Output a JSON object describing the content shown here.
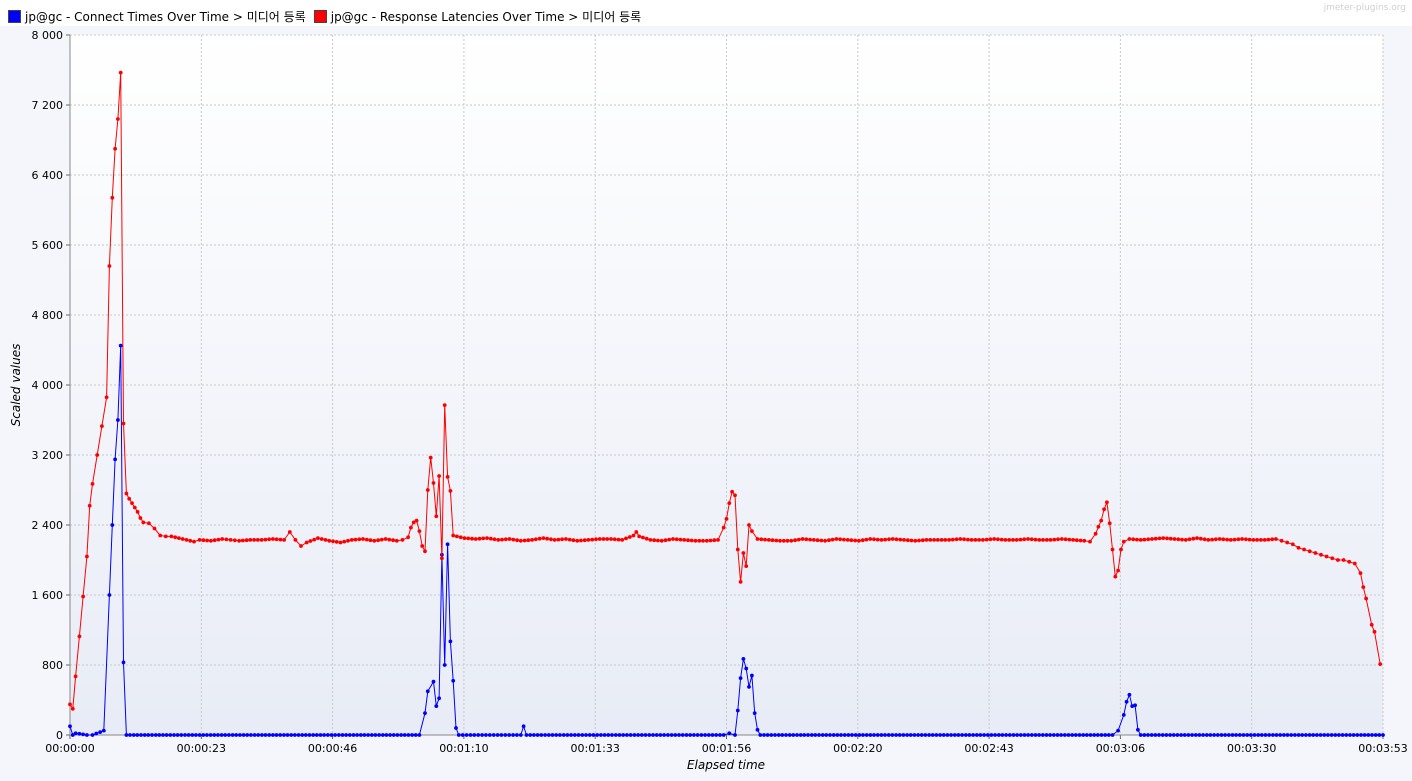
{
  "watermark": "jmeter-plugins.org",
  "chart_data": {
    "type": "line",
    "xlabel": "Elapsed time",
    "ylabel": "Scaled values",
    "ylim": [
      0,
      8000
    ],
    "xlim_seconds": [
      0,
      233
    ],
    "y_ticks": [
      "0",
      "800",
      "1 600",
      "2 400",
      "3 200",
      "4 000",
      "4 800",
      "5 600",
      "6 400",
      "7 200",
      "8 000"
    ],
    "x_ticks": [
      "00:00:00",
      "00:00:23",
      "00:00:46",
      "00:01:10",
      "00:01:33",
      "00:01:56",
      "00:02:20",
      "00:02:43",
      "00:03:06",
      "00:03:30",
      "00:03:53"
    ],
    "grid": true,
    "legend_position": "top-left",
    "series": [
      {
        "name": "jp@gc - Connect Times Over Time > 미디어 등록",
        "color": "#0000ff",
        "points": [
          [
            0,
            100
          ],
          [
            0.5,
            0
          ],
          [
            1,
            20
          ],
          [
            3,
            0
          ],
          [
            4,
            0
          ],
          [
            6,
            50
          ],
          [
            7,
            1600
          ],
          [
            7.5,
            2400
          ],
          [
            8,
            3150
          ],
          [
            8.5,
            3600
          ],
          [
            9,
            4450
          ],
          [
            9.5,
            830
          ],
          [
            10,
            0
          ],
          [
            62,
            0
          ],
          [
            63,
            250
          ],
          [
            63.5,
            500
          ],
          [
            64.5,
            610
          ],
          [
            65,
            330
          ],
          [
            65.5,
            420
          ],
          [
            66,
            2060
          ],
          [
            66.5,
            800
          ],
          [
            67,
            2180
          ],
          [
            67.5,
            1070
          ],
          [
            68,
            620
          ],
          [
            68.5,
            80
          ],
          [
            69,
            0
          ],
          [
            80,
            0
          ],
          [
            80.5,
            100
          ],
          [
            81,
            0
          ],
          [
            116,
            0
          ],
          [
            117,
            20
          ],
          [
            118,
            0
          ],
          [
            118.5,
            280
          ],
          [
            119,
            650
          ],
          [
            119.5,
            870
          ],
          [
            120,
            760
          ],
          [
            120.5,
            550
          ],
          [
            121,
            680
          ],
          [
            121.5,
            250
          ],
          [
            122,
            60
          ],
          [
            122.5,
            0
          ],
          [
            185,
            0
          ],
          [
            186,
            50
          ],
          [
            187,
            230
          ],
          [
            187.5,
            380
          ],
          [
            188,
            460
          ],
          [
            188.5,
            330
          ],
          [
            189,
            340
          ],
          [
            189.5,
            60
          ],
          [
            190,
            0
          ],
          [
            233,
            0
          ]
        ]
      },
      {
        "name": "jp@gc - Response Latencies Over Time > 미디어 등록",
        "color": "#ff0000",
        "points": [
          [
            0,
            350
          ],
          [
            0.5,
            300
          ],
          [
            1,
            670
          ],
          [
            3,
            2040
          ],
          [
            3.5,
            2620
          ],
          [
            4,
            2870
          ],
          [
            6.5,
            3860
          ],
          [
            7,
            5360
          ],
          [
            7.5,
            6140
          ],
          [
            8,
            6700
          ],
          [
            8.5,
            7040
          ],
          [
            9,
            7570
          ],
          [
            9.5,
            3560
          ],
          [
            10,
            2760
          ],
          [
            10.5,
            2700
          ],
          [
            11,
            2650
          ],
          [
            11.5,
            2600
          ],
          [
            12,
            2550
          ],
          [
            12.5,
            2480
          ],
          [
            13,
            2430
          ],
          [
            14,
            2420
          ],
          [
            15,
            2360
          ],
          [
            16,
            2280
          ],
          [
            17,
            2270
          ],
          [
            18,
            2270
          ],
          [
            20,
            2240
          ],
          [
            22,
            2210
          ],
          [
            23,
            2230
          ],
          [
            25,
            2220
          ],
          [
            27,
            2240
          ],
          [
            30,
            2220
          ],
          [
            32,
            2230
          ],
          [
            34,
            2230
          ],
          [
            36,
            2240
          ],
          [
            38,
            2230
          ],
          [
            39,
            2320
          ],
          [
            40,
            2230
          ],
          [
            41,
            2160
          ],
          [
            42,
            2200
          ],
          [
            44,
            2250
          ],
          [
            46,
            2220
          ],
          [
            48,
            2200
          ],
          [
            50,
            2230
          ],
          [
            52,
            2240
          ],
          [
            54,
            2220
          ],
          [
            56,
            2240
          ],
          [
            58,
            2220
          ],
          [
            59,
            2230
          ],
          [
            60,
            2260
          ],
          [
            60.5,
            2370
          ],
          [
            61,
            2430
          ],
          [
            61.5,
            2450
          ],
          [
            62,
            2330
          ],
          [
            62.5,
            2160
          ],
          [
            63,
            2100
          ],
          [
            63.5,
            2800
          ],
          [
            64,
            3170
          ],
          [
            64.5,
            2880
          ],
          [
            65,
            2500
          ],
          [
            65.5,
            2960
          ],
          [
            66,
            2020
          ],
          [
            66.5,
            3770
          ],
          [
            67,
            2950
          ],
          [
            67.5,
            2790
          ],
          [
            68,
            2280
          ],
          [
            70,
            2250
          ],
          [
            72,
            2240
          ],
          [
            74,
            2250
          ],
          [
            76,
            2230
          ],
          [
            78,
            2240
          ],
          [
            80,
            2220
          ],
          [
            82,
            2230
          ],
          [
            84,
            2250
          ],
          [
            86,
            2230
          ],
          [
            88,
            2240
          ],
          [
            90,
            2220
          ],
          [
            92,
            2230
          ],
          [
            94,
            2240
          ],
          [
            96,
            2240
          ],
          [
            98,
            2230
          ],
          [
            100,
            2280
          ],
          [
            100.5,
            2320
          ],
          [
            101,
            2270
          ],
          [
            103,
            2230
          ],
          [
            105,
            2220
          ],
          [
            107,
            2240
          ],
          [
            109,
            2230
          ],
          [
            111,
            2220
          ],
          [
            113,
            2220
          ],
          [
            115,
            2230
          ],
          [
            116,
            2370
          ],
          [
            116.5,
            2470
          ],
          [
            117,
            2650
          ],
          [
            117.5,
            2780
          ],
          [
            118,
            2740
          ],
          [
            118.5,
            2120
          ],
          [
            119,
            1750
          ],
          [
            119.5,
            2080
          ],
          [
            120,
            1930
          ],
          [
            120.5,
            2400
          ],
          [
            121,
            2330
          ],
          [
            122,
            2240
          ],
          [
            124,
            2230
          ],
          [
            126,
            2220
          ],
          [
            128,
            2220
          ],
          [
            130,
            2240
          ],
          [
            132,
            2230
          ],
          [
            134,
            2220
          ],
          [
            136,
            2240
          ],
          [
            138,
            2230
          ],
          [
            140,
            2220
          ],
          [
            142,
            2240
          ],
          [
            144,
            2230
          ],
          [
            146,
            2240
          ],
          [
            148,
            2230
          ],
          [
            150,
            2220
          ],
          [
            152,
            2230
          ],
          [
            154,
            2230
          ],
          [
            156,
            2230
          ],
          [
            158,
            2240
          ],
          [
            160,
            2230
          ],
          [
            162,
            2230
          ],
          [
            164,
            2240
          ],
          [
            166,
            2230
          ],
          [
            168,
            2230
          ],
          [
            170,
            2240
          ],
          [
            172,
            2230
          ],
          [
            174,
            2230
          ],
          [
            176,
            2240
          ],
          [
            178,
            2230
          ],
          [
            180,
            2220
          ],
          [
            181,
            2210
          ],
          [
            182,
            2300
          ],
          [
            182.5,
            2380
          ],
          [
            183,
            2450
          ],
          [
            183.5,
            2580
          ],
          [
            184,
            2660
          ],
          [
            184.5,
            2420
          ],
          [
            185,
            2120
          ],
          [
            185.5,
            1810
          ],
          [
            186,
            1880
          ],
          [
            186.5,
            2120
          ],
          [
            187,
            2210
          ],
          [
            188,
            2240
          ],
          [
            190,
            2230
          ],
          [
            192,
            2240
          ],
          [
            194,
            2250
          ],
          [
            196,
            2240
          ],
          [
            198,
            2230
          ],
          [
            200,
            2250
          ],
          [
            202,
            2230
          ],
          [
            204,
            2240
          ],
          [
            206,
            2230
          ],
          [
            208,
            2240
          ],
          [
            210,
            2230
          ],
          [
            212,
            2230
          ],
          [
            214,
            2240
          ],
          [
            215,
            2220
          ],
          [
            216,
            2200
          ],
          [
            217,
            2180
          ],
          [
            218,
            2140
          ],
          [
            219,
            2120
          ],
          [
            220,
            2100
          ],
          [
            221,
            2080
          ],
          [
            222,
            2060
          ],
          [
            223,
            2040
          ],
          [
            224,
            2020
          ],
          [
            225,
            2000
          ],
          [
            226,
            2000
          ],
          [
            227,
            1980
          ],
          [
            228,
            1960
          ],
          [
            229,
            1850
          ],
          [
            229.5,
            1690
          ],
          [
            230,
            1560
          ],
          [
            231,
            1260
          ],
          [
            231.5,
            1180
          ],
          [
            232.5,
            810
          ]
        ]
      }
    ]
  }
}
